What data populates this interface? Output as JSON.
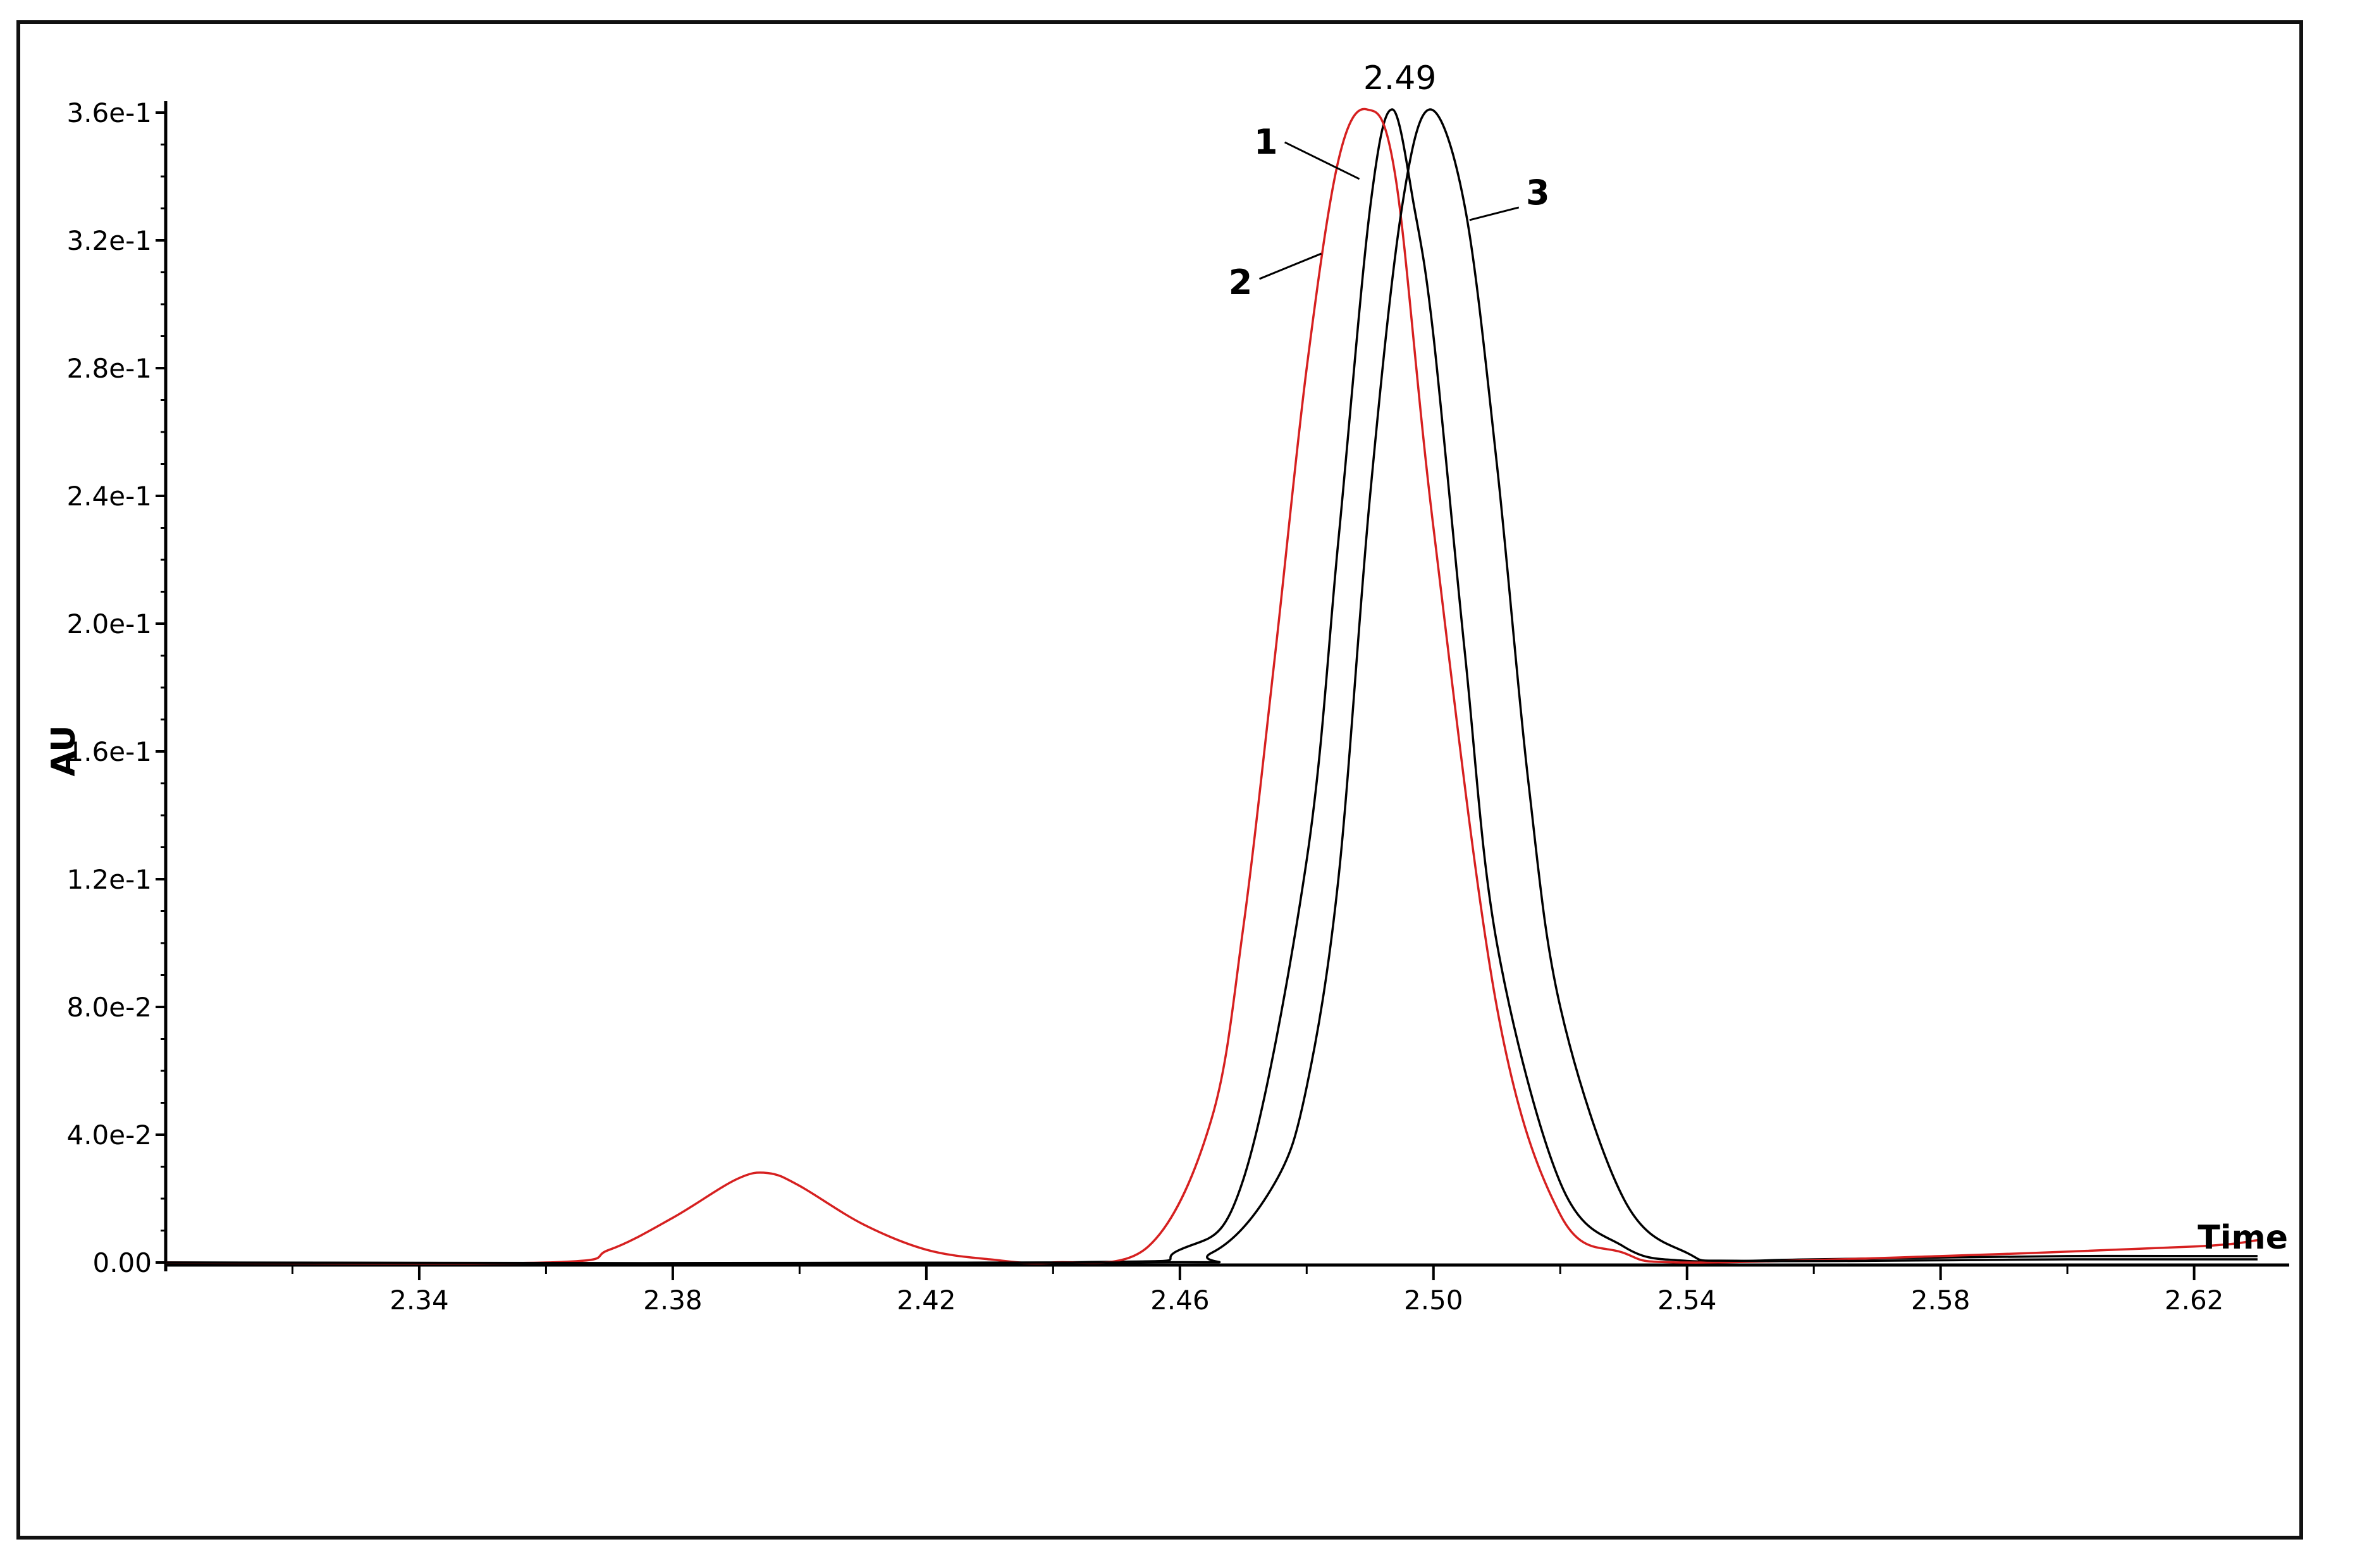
{
  "chart_data": {
    "type": "line",
    "title": "",
    "xlabel": "Time",
    "ylabel": "AU",
    "xlim": [
      2.3,
      2.635
    ],
    "ylim": [
      0,
      0.36
    ],
    "grid": false,
    "x_ticks": [
      "2.34",
      "2.38",
      "2.42",
      "2.46",
      "2.50",
      "2.54",
      "2.58",
      "2.62"
    ],
    "y_ticks": [
      "0.00",
      "4.0e-2",
      "8.0e-2",
      "1.2e-1",
      "1.6e-1",
      "2.0e-1",
      "2.4e-1",
      "2.8e-1",
      "3.2e-1",
      "3.6e-1"
    ],
    "apex_annotation": "2.49",
    "series": [
      {
        "name": "1",
        "color": "#000000",
        "x": [
          2.3,
          2.44,
          2.46,
          2.47,
          2.48,
          2.485,
          2.49,
          2.4935,
          2.497,
          2.5,
          2.505,
          2.51,
          2.52,
          2.53,
          2.54,
          2.56,
          2.6,
          2.63
        ],
        "y": [
          0.0,
          0.0,
          0.004,
          0.026,
          0.126,
          0.226,
          0.33,
          0.361,
          0.33,
          0.29,
          0.19,
          0.1,
          0.025,
          0.005,
          0.0005,
          0.001,
          0.002,
          0.002
        ]
      },
      {
        "name": "2",
        "color": "#d62020",
        "x": [
          2.3,
          2.36,
          2.37,
          2.38,
          2.39,
          2.395,
          2.4,
          2.41,
          2.42,
          2.43,
          2.44,
          2.455,
          2.465,
          2.47,
          2.475,
          2.48,
          2.485,
          2.4895,
          2.494,
          2.5,
          2.51,
          2.52,
          2.53,
          2.54,
          2.58,
          2.62,
          2.63
        ],
        "y": [
          0.0,
          0.0,
          0.004,
          0.014,
          0.026,
          0.028,
          0.024,
          0.012,
          0.004,
          0.001,
          0.0,
          0.005,
          0.045,
          0.105,
          0.19,
          0.28,
          0.345,
          0.361,
          0.34,
          0.23,
          0.08,
          0.015,
          0.003,
          0.0,
          0.002,
          0.005,
          0.007
        ]
      },
      {
        "name": "3",
        "color": "#000000",
        "x": [
          2.3,
          2.45,
          2.465,
          2.475,
          2.48,
          2.485,
          2.49,
          2.495,
          2.4995,
          2.505,
          2.51,
          2.515,
          2.52,
          2.53,
          2.54,
          2.55,
          2.6,
          2.63
        ],
        "y": [
          0.0,
          0.0,
          0.003,
          0.025,
          0.055,
          0.12,
          0.24,
          0.33,
          0.361,
          0.33,
          0.25,
          0.15,
          0.08,
          0.02,
          0.003,
          0.0005,
          0.001,
          0.001
        ]
      }
    ]
  }
}
